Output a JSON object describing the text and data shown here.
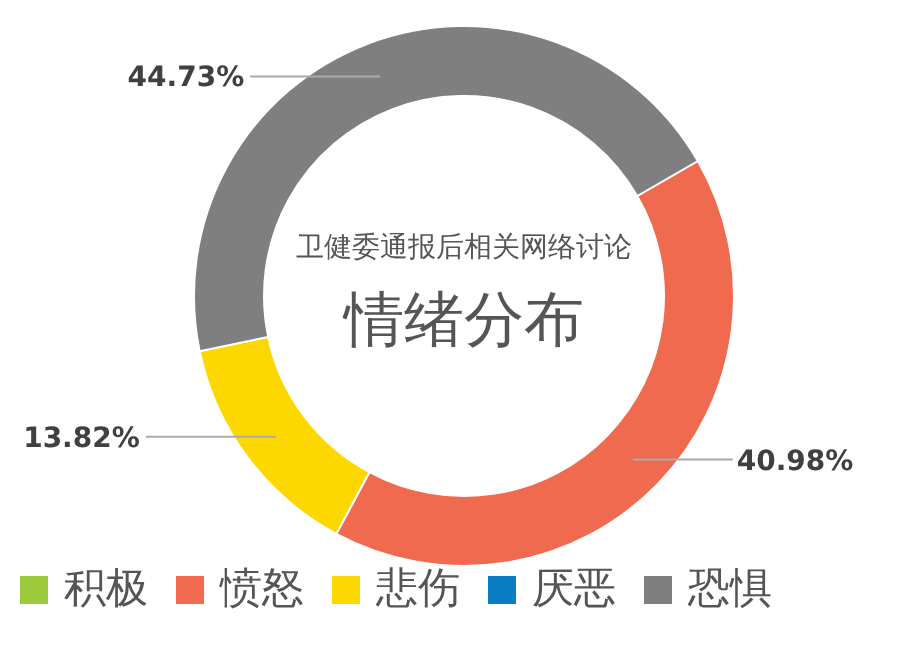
{
  "chart_data": {
    "type": "donut",
    "title": "卫健委通报后相关网络讨论",
    "subtitle": "情绪分布",
    "categories": [
      "积极",
      "愤怒",
      "悲伤",
      "厌恶",
      "恐惧"
    ],
    "values": [
      null,
      40.98,
      13.82,
      null,
      44.73
    ],
    "value_labels": [
      null,
      "40.98%",
      "13.82%",
      null,
      "44.73%"
    ],
    "colors": [
      "#9bcb3c",
      "#ef6a4e",
      "#fdd800",
      "#0a7cc4",
      "#7f7f7f"
    ],
    "legend": "bottom"
  }
}
